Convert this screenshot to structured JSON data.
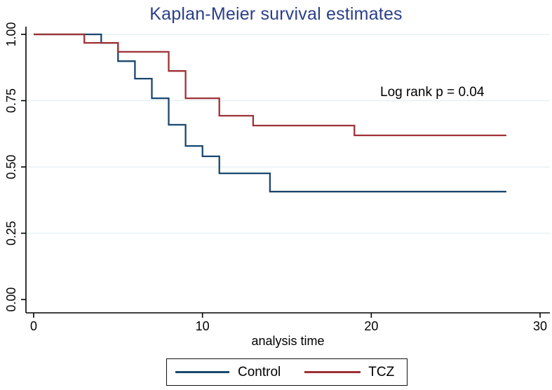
{
  "title": "Kaplan-Meier survival estimates",
  "annotation": "Log rank p = 0.04",
  "colors": {
    "title_text": "#2a3f8a",
    "grid": "#e6f1f3",
    "axis": "#000000",
    "background": "#ffffff",
    "control": "#1a476f",
    "tcz": "#9e3137"
  },
  "chart_data": {
    "type": "line",
    "subtype": "kaplan-meier-step",
    "title": "Kaplan-Meier survival estimates",
    "xlabel": "analysis time",
    "ylabel": "",
    "xlim": [
      0,
      30
    ],
    "ylim": [
      0,
      1
    ],
    "xticks": [
      0,
      10,
      20,
      30
    ],
    "yticks": [
      "0.00",
      "0.25",
      "0.50",
      "0.75",
      "1.00"
    ],
    "grid": "horizontal",
    "annotation": {
      "text": "Log rank p = 0.04",
      "x": 23.9,
      "y": 0.78
    },
    "legend": {
      "position": "bottom-center",
      "border": true,
      "entries": [
        {
          "label": "Control",
          "color": "#1a476f"
        },
        {
          "label": "TCZ",
          "color": "#9e3137"
        }
      ]
    },
    "series": [
      {
        "name": "Control",
        "color": "#1a476f",
        "points": [
          [
            0,
            1.0
          ],
          [
            4,
            1.0
          ],
          [
            4,
            0.968
          ],
          [
            5,
            0.968
          ],
          [
            5,
            0.899
          ],
          [
            6,
            0.899
          ],
          [
            6,
            0.833
          ],
          [
            7,
            0.833
          ],
          [
            7,
            0.759
          ],
          [
            8,
            0.759
          ],
          [
            8,
            0.659
          ],
          [
            9,
            0.659
          ],
          [
            9,
            0.579
          ],
          [
            10,
            0.579
          ],
          [
            10,
            0.54
          ],
          [
            11,
            0.54
          ],
          [
            11,
            0.476
          ],
          [
            14,
            0.476
          ],
          [
            14,
            0.407
          ],
          [
            28,
            0.407
          ]
        ]
      },
      {
        "name": "TCZ",
        "color": "#9e3137",
        "points": [
          [
            0,
            1.0
          ],
          [
            3,
            1.0
          ],
          [
            3,
            0.968
          ],
          [
            5,
            0.968
          ],
          [
            5,
            0.934
          ],
          [
            8,
            0.934
          ],
          [
            8,
            0.862
          ],
          [
            9,
            0.862
          ],
          [
            9,
            0.759
          ],
          [
            11,
            0.759
          ],
          [
            11,
            0.693
          ],
          [
            13,
            0.693
          ],
          [
            13,
            0.656
          ],
          [
            19,
            0.656
          ],
          [
            19,
            0.619
          ],
          [
            28,
            0.619
          ]
        ]
      }
    ]
  }
}
